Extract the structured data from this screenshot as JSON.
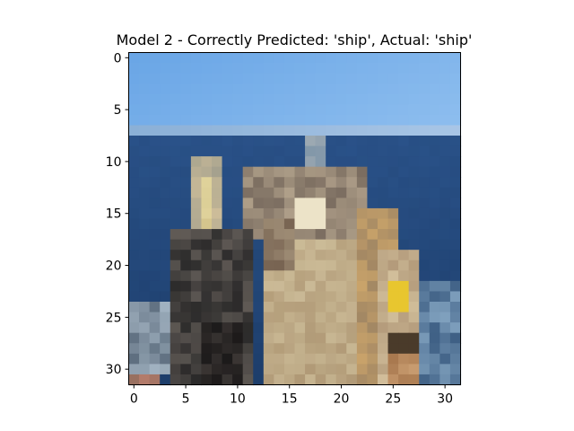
{
  "figure": {
    "title": "Model 2 - Correctly Predicted: 'ship', Actual: 'ship'"
  },
  "image": {
    "grid_size": 32,
    "description_palette": {
      "sky_top": "#6aa6e6",
      "sky_bottom": "#94c2f0",
      "sea": "#2a5289",
      "sea_dark": "#1e3f6d",
      "hull_light": "#cdbd99",
      "hull_mid": "#a88f6c",
      "deck_dark": "#2b2a2a",
      "rail_tan": "#c9a36a",
      "yellow_box": "#e8c62f",
      "highlight": "#ece3c8"
    }
  },
  "axes": {
    "x_ticks": [
      "0",
      "5",
      "10",
      "15",
      "20",
      "25",
      "30"
    ],
    "y_ticks": [
      "0",
      "5",
      "10",
      "15",
      "20",
      "25",
      "30"
    ]
  }
}
